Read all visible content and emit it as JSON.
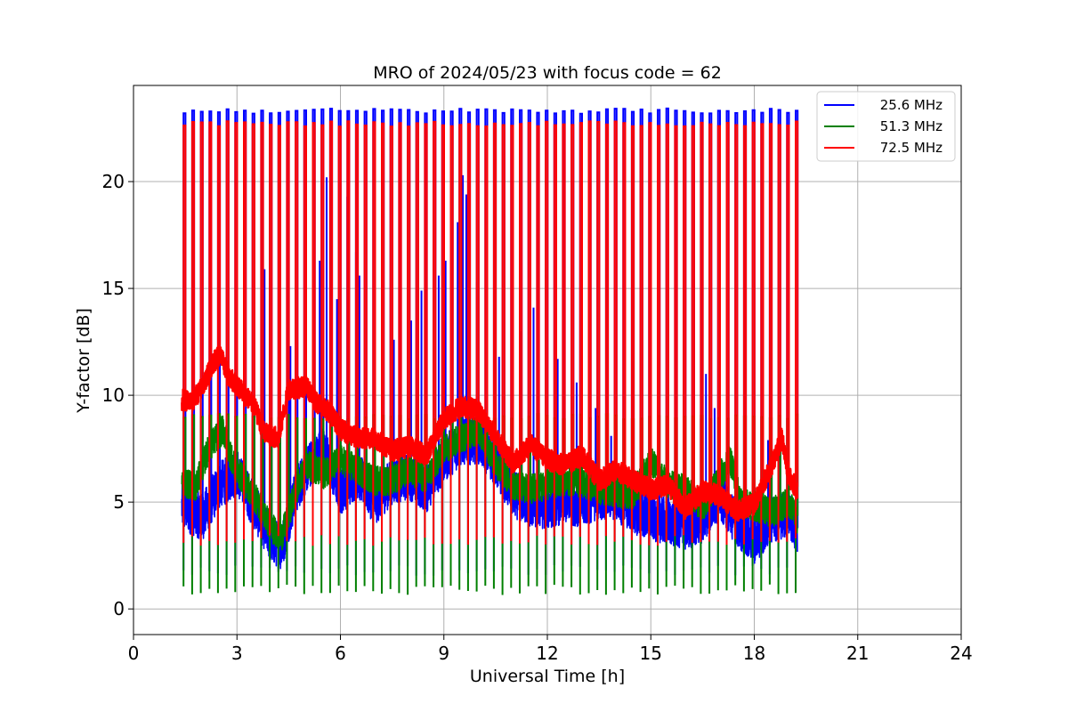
{
  "chart_data": {
    "type": "line",
    "title": "MRO of 2024/05/23 with focus code = 62",
    "xlabel": "Universal Time [h]",
    "ylabel": "Y-factor [dB]",
    "xlim": [
      0,
      24
    ],
    "ylim": [
      -1.2,
      24.5
    ],
    "xticks": [
      0,
      3,
      6,
      9,
      12,
      15,
      18,
      21,
      24
    ],
    "yticks": [
      0,
      5,
      10,
      15,
      20
    ],
    "grid": true,
    "legend_position": "top-right",
    "calibration_period_h": 0.25,
    "data_range_h": [
      1.4,
      19.25
    ],
    "series": [
      {
        "name": "25.6 MHz",
        "color": "#0000ff",
        "pulse_high": 23.3,
        "pulse_low": 1.8,
        "baseline": [
          [
            1.4,
            4.8
          ],
          [
            2.0,
            4.3
          ],
          [
            2.5,
            5.8
          ],
          [
            3.0,
            6.4
          ],
          [
            3.5,
            4.8
          ],
          [
            4.0,
            3.2
          ],
          [
            4.3,
            2.9
          ],
          [
            4.7,
            5.5
          ],
          [
            5.0,
            6.5
          ],
          [
            5.5,
            7.5
          ],
          [
            6.0,
            5.5
          ],
          [
            6.5,
            6.3
          ],
          [
            7.0,
            5.0
          ],
          [
            7.5,
            6.0
          ],
          [
            8.0,
            6.2
          ],
          [
            8.5,
            5.6
          ],
          [
            9.0,
            7.0
          ],
          [
            9.5,
            7.8
          ],
          [
            10.0,
            7.9
          ],
          [
            10.5,
            6.8
          ],
          [
            11.0,
            5.4
          ],
          [
            11.5,
            4.9
          ],
          [
            12.0,
            4.8
          ],
          [
            12.5,
            5.1
          ],
          [
            13.0,
            4.9
          ],
          [
            13.5,
            5.3
          ],
          [
            14.0,
            5.2
          ],
          [
            14.5,
            4.6
          ],
          [
            15.0,
            4.3
          ],
          [
            15.5,
            4.1
          ],
          [
            16.0,
            3.8
          ],
          [
            16.5,
            4.2
          ],
          [
            17.0,
            5.3
          ],
          [
            17.5,
            4.0
          ],
          [
            18.0,
            3.2
          ],
          [
            18.5,
            4.2
          ],
          [
            19.0,
            4.5
          ],
          [
            19.25,
            3.6
          ]
        ],
        "spikes": [
          [
            3.8,
            15.9
          ],
          [
            3.95,
            15.5
          ],
          [
            4.55,
            12.3
          ],
          [
            5.4,
            16.3
          ],
          [
            5.6,
            20.2
          ],
          [
            5.75,
            17.0
          ],
          [
            5.9,
            14.5
          ],
          [
            6.2,
            19.3
          ],
          [
            6.45,
            16.7
          ],
          [
            6.55,
            15.6
          ],
          [
            7.2,
            13.2
          ],
          [
            7.55,
            12.6
          ],
          [
            8.05,
            13.5
          ],
          [
            8.35,
            14.9
          ],
          [
            8.85,
            15.6
          ],
          [
            9.05,
            16.3
          ],
          [
            9.2,
            17.0
          ],
          [
            9.4,
            18.1
          ],
          [
            9.55,
            20.3
          ],
          [
            9.65,
            19.4
          ],
          [
            9.95,
            15.3
          ],
          [
            10.6,
            11.8
          ],
          [
            11.25,
            13.0
          ],
          [
            11.6,
            14.1
          ],
          [
            11.95,
            15.9
          ],
          [
            12.3,
            11.7
          ],
          [
            12.85,
            10.6
          ],
          [
            13.4,
            9.4
          ],
          [
            13.85,
            8.1
          ],
          [
            14.5,
            11.6
          ],
          [
            16.45,
            8.9
          ],
          [
            16.6,
            11.0
          ],
          [
            16.85,
            9.4
          ],
          [
            17.2,
            7.6
          ],
          [
            18.4,
            7.9
          ],
          [
            18.75,
            7.2
          ]
        ]
      },
      {
        "name": "51.3 MHz",
        "color": "#008000",
        "pulse_high": 9.0,
        "pulse_low": 0.9,
        "baseline": [
          [
            1.4,
            6.0
          ],
          [
            1.8,
            5.7
          ],
          [
            2.2,
            7.6
          ],
          [
            2.6,
            8.4
          ],
          [
            2.9,
            6.7
          ],
          [
            3.2,
            6.0
          ],
          [
            3.6,
            5.0
          ],
          [
            4.0,
            3.8
          ],
          [
            4.3,
            3.4
          ],
          [
            4.7,
            5.5
          ],
          [
            5.0,
            6.8
          ],
          [
            5.5,
            6.3
          ],
          [
            6.0,
            7.0
          ],
          [
            6.5,
            6.5
          ],
          [
            7.0,
            6.0
          ],
          [
            7.5,
            6.0
          ],
          [
            8.0,
            6.5
          ],
          [
            8.5,
            6.1
          ],
          [
            9.0,
            7.5
          ],
          [
            9.5,
            8.0
          ],
          [
            10.0,
            8.4
          ],
          [
            10.5,
            6.8
          ],
          [
            11.0,
            5.8
          ],
          [
            11.5,
            5.6
          ],
          [
            12.0,
            5.8
          ],
          [
            12.5,
            6.0
          ],
          [
            13.0,
            5.9
          ],
          [
            13.5,
            5.6
          ],
          [
            14.0,
            5.4
          ],
          [
            14.5,
            5.4
          ],
          [
            15.0,
            6.9
          ],
          [
            15.5,
            5.8
          ],
          [
            16.0,
            5.6
          ],
          [
            16.5,
            4.8
          ],
          [
            17.0,
            6.2
          ],
          [
            17.3,
            7.0
          ],
          [
            17.6,
            5.0
          ],
          [
            18.0,
            4.8
          ],
          [
            18.5,
            4.5
          ],
          [
            19.0,
            5.0
          ],
          [
            19.25,
            4.2
          ]
        ]
      },
      {
        "name": "72.5 MHz",
        "color": "#ff0000",
        "pulse_high": 22.7,
        "pulse_low": 3.2,
        "baseline": [
          [
            1.4,
            9.8
          ],
          [
            1.7,
            9.7
          ],
          [
            2.0,
            10.4
          ],
          [
            2.3,
            11.5
          ],
          [
            2.5,
            11.9
          ],
          [
            2.8,
            10.8
          ],
          [
            3.1,
            10.3
          ],
          [
            3.5,
            9.5
          ],
          [
            3.8,
            8.2
          ],
          [
            4.2,
            8.0
          ],
          [
            4.5,
            10.3
          ],
          [
            5.0,
            10.4
          ],
          [
            5.3,
            9.7
          ],
          [
            5.7,
            9.2
          ],
          [
            6.0,
            8.4
          ],
          [
            6.5,
            8.0
          ],
          [
            7.0,
            8.0
          ],
          [
            7.5,
            7.4
          ],
          [
            8.0,
            7.6
          ],
          [
            8.5,
            7.2
          ],
          [
            9.0,
            8.9
          ],
          [
            9.5,
            9.5
          ],
          [
            10.0,
            9.3
          ],
          [
            10.5,
            8.1
          ],
          [
            11.0,
            6.8
          ],
          [
            11.5,
            7.7
          ],
          [
            12.0,
            7.0
          ],
          [
            12.5,
            6.7
          ],
          [
            13.0,
            7.2
          ],
          [
            13.5,
            6.0
          ],
          [
            14.0,
            6.5
          ],
          [
            14.5,
            6.0
          ],
          [
            15.0,
            5.6
          ],
          [
            15.5,
            5.8
          ],
          [
            16.0,
            4.7
          ],
          [
            16.5,
            5.5
          ],
          [
            17.0,
            5.3
          ],
          [
            17.5,
            4.6
          ],
          [
            18.0,
            4.9
          ],
          [
            18.5,
            6.7
          ],
          [
            18.8,
            8.0
          ],
          [
            19.0,
            6.2
          ],
          [
            19.25,
            5.6
          ]
        ]
      }
    ]
  }
}
